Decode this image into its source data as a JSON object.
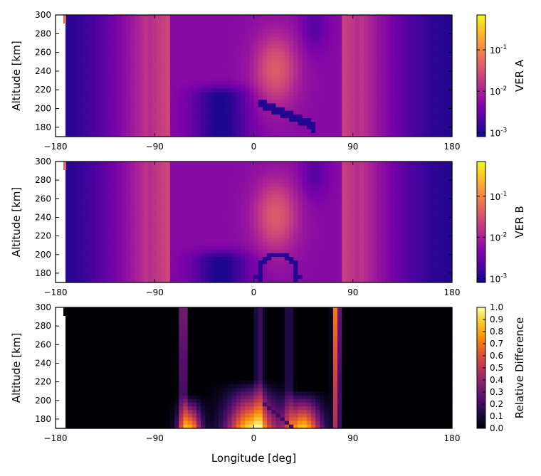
{
  "chart_data": [
    {
      "type": "heatmap",
      "ylabel": "Altitude [km]",
      "xlabel": "",
      "xlim": [
        -180,
        180
      ],
      "ylim": [
        170,
        300
      ],
      "xticks": [
        "−180",
        "−90",
        "0",
        "90",
        "180"
      ],
      "xtick_values": [
        -180,
        -90,
        0,
        90,
        180
      ],
      "yticks": [
        "180",
        "200",
        "220",
        "240",
        "260",
        "280",
        "300"
      ],
      "ytick_values": [
        180,
        200,
        220,
        240,
        260,
        280,
        300
      ],
      "colormap": "plasma",
      "colorbar": {
        "label": "VER A",
        "scale": "log",
        "ticks": [
          {
            "base": "10",
            "exp": "-3",
            "value": 0.001
          },
          {
            "base": "10",
            "exp": "-2",
            "value": 0.01
          },
          {
            "base": "10",
            "exp": "-1",
            "value": 0.1
          }
        ],
        "range": [
          0.0008,
          0.7
        ]
      }
    },
    {
      "type": "heatmap",
      "ylabel": "Altitude [km]",
      "xlabel": "",
      "xlim": [
        -180,
        180
      ],
      "ylim": [
        170,
        300
      ],
      "xticks": [
        "−180",
        "−90",
        "0",
        "90",
        "180"
      ],
      "xtick_values": [
        -180,
        -90,
        0,
        90,
        180
      ],
      "yticks": [
        "180",
        "200",
        "220",
        "240",
        "260",
        "280",
        "300"
      ],
      "ytick_values": [
        180,
        200,
        220,
        240,
        260,
        280,
        300
      ],
      "colormap": "plasma",
      "colorbar": {
        "label": "VER B",
        "scale": "log",
        "ticks": [
          {
            "base": "10",
            "exp": "-3",
            "value": 0.001
          },
          {
            "base": "10",
            "exp": "-2",
            "value": 0.01
          },
          {
            "base": "10",
            "exp": "-1",
            "value": 0.1
          }
        ],
        "range": [
          0.0008,
          0.7
        ]
      }
    },
    {
      "type": "heatmap",
      "ylabel": "Altitude [km]",
      "xlabel": "Longitude [deg]",
      "xlim": [
        -180,
        180
      ],
      "ylim": [
        170,
        300
      ],
      "xticks": [
        "−180",
        "−90",
        "0",
        "90",
        "180"
      ],
      "xtick_values": [
        -180,
        -90,
        0,
        90,
        180
      ],
      "yticks": [
        "180",
        "200",
        "220",
        "240",
        "260",
        "280",
        "300"
      ],
      "ytick_values": [
        180,
        200,
        220,
        240,
        260,
        280,
        300
      ],
      "colormap": "inferno",
      "colorbar": {
        "label": "Relative Difference",
        "scale": "linear",
        "ticks": [
          "0.0",
          "0.1",
          "0.2",
          "0.3",
          "0.4",
          "0.5",
          "0.6",
          "0.7",
          "0.8",
          "0.9",
          "1.0"
        ],
        "tick_values": [
          0.0,
          0.1,
          0.2,
          0.3,
          0.4,
          0.5,
          0.6,
          0.7,
          0.8,
          0.9,
          1.0
        ],
        "range": [
          0,
          1
        ]
      }
    }
  ]
}
